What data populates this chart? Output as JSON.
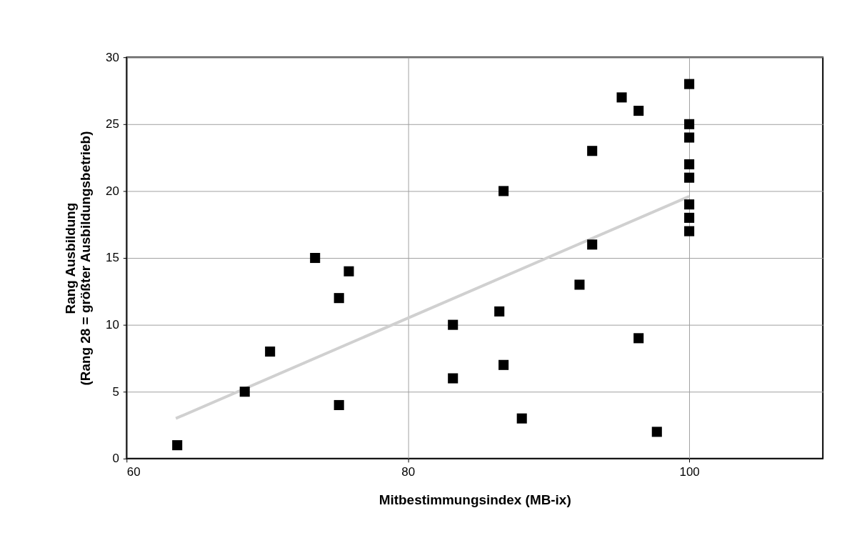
{
  "chart_data": {
    "type": "scatter",
    "xlabel": "Mitbestimmungsindex (MB-ix)",
    "ylabel": "Rang Ausbildung\n(Rang 28 = größter Ausbildungsbetrieb)",
    "xlim": [
      60,
      109.5
    ],
    "xticks": [
      60,
      80,
      100
    ],
    "ylim": [
      0,
      30
    ],
    "yticks": [
      0,
      5,
      10,
      15,
      20,
      25,
      30
    ],
    "grid": true,
    "series": [
      {
        "marker": "square",
        "color": "#000000",
        "x": [
          63.6,
          68.4,
          70.2,
          73.4,
          75.1,
          75.8,
          75.1,
          83.2,
          83.2,
          86.5,
          86.8,
          86.8,
          88.1,
          92.2,
          93.1,
          93.1,
          95.2,
          96.4,
          96.4,
          97.7,
          100,
          100,
          100,
          100,
          100,
          100,
          100,
          100
        ],
        "values": [
          1,
          5,
          8,
          15,
          12,
          14,
          4,
          10,
          6,
          11,
          20,
          7,
          3,
          13,
          23,
          16,
          27,
          26,
          9,
          2,
          28,
          25,
          24,
          22,
          21,
          19,
          18,
          17
        ]
      },
      {
        "type": "line",
        "marker": "none",
        "color": "#d0d0d0",
        "x": [
          63.5,
          100
        ],
        "values": [
          3.0,
          19.6
        ]
      }
    ]
  }
}
